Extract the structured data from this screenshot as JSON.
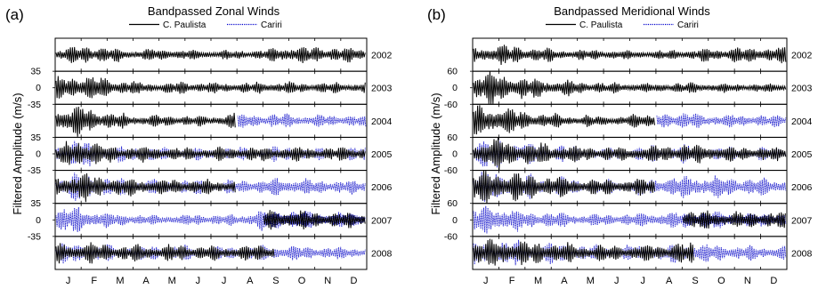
{
  "chart_data": [
    {
      "type": "line",
      "panel_label": "(a)",
      "title": "Bandpassed Zonal Winds",
      "ylabel": "Filtered Amplitude (m/s)",
      "xlabel": "",
      "months": [
        "J",
        "F",
        "M",
        "A",
        "M",
        "J",
        "J",
        "A",
        "S",
        "O",
        "N",
        "D"
      ],
      "legend": [
        {
          "name": "C. Paulista",
          "color": "#000000",
          "style": "solid"
        },
        {
          "name": "Cariri",
          "color": "#0000cc",
          "style": "dotted"
        }
      ],
      "ylim": [
        -35,
        35
      ],
      "ytick_values": [
        35,
        0,
        -35
      ],
      "series": [
        {
          "name": "2002",
          "paulista_months": [
            0,
            12
          ],
          "cariri_months": null,
          "envelope": [
            0.35,
            0.55,
            0.45,
            0.3,
            0.35,
            0.3,
            0.25,
            0.25,
            0.3,
            0.5,
            0.45,
            0.4
          ]
        },
        {
          "name": "2003",
          "paulista_months": [
            0,
            12
          ],
          "cariri_months": null,
          "envelope": [
            0.55,
            0.8,
            0.6,
            0.35,
            0.3,
            0.35,
            0.3,
            0.3,
            0.35,
            0.35,
            0.3,
            0.3
          ]
        },
        {
          "name": "2004",
          "paulista_months": [
            0,
            7
          ],
          "cariri_months": [
            7,
            12
          ],
          "envelope": [
            0.8,
            0.85,
            0.5,
            0.35,
            0.35,
            0.3,
            0.3,
            0.45,
            0.4,
            0.4,
            0.35,
            0.35
          ]
        },
        {
          "name": "2005",
          "paulista_months": [
            0,
            12
          ],
          "cariri_months": [
            0,
            12
          ],
          "envelope": [
            0.45,
            0.9,
            0.5,
            0.45,
            0.4,
            0.35,
            0.35,
            0.4,
            0.4,
            0.45,
            0.35,
            0.4
          ]
        },
        {
          "name": "2006",
          "paulista_months": [
            0,
            7
          ],
          "cariri_months": [
            0,
            12
          ],
          "envelope": [
            0.6,
            0.85,
            0.55,
            0.5,
            0.45,
            0.45,
            0.4,
            0.4,
            0.45,
            0.55,
            0.45,
            0.4
          ]
        },
        {
          "name": "2007",
          "paulista_months": [
            8,
            12
          ],
          "cariri_months": [
            0,
            12
          ],
          "envelope": [
            0.7,
            0.75,
            0.45,
            0.35,
            0.3,
            0.3,
            0.35,
            0.35,
            0.6,
            0.6,
            0.5,
            0.45
          ]
        },
        {
          "name": "2008",
          "paulista_months": [
            0,
            8.5
          ],
          "cariri_months": [
            0,
            12
          ],
          "envelope": [
            0.55,
            0.6,
            0.5,
            0.45,
            0.45,
            0.45,
            0.4,
            0.4,
            0.45,
            0.45,
            0.4,
            0.35
          ]
        }
      ]
    },
    {
      "type": "line",
      "panel_label": "(b)",
      "title": "Bandpassed Meridional Winds",
      "ylabel": "Filtered Amplitude (m/s)",
      "xlabel": "",
      "months": [
        "J",
        "F",
        "M",
        "A",
        "M",
        "J",
        "J",
        "A",
        "S",
        "O",
        "N",
        "D"
      ],
      "legend": [
        {
          "name": "C. Paulista",
          "color": "#000000",
          "style": "solid"
        },
        {
          "name": "Cariri",
          "color": "#0000cc",
          "style": "dotted"
        }
      ],
      "ylim": [
        -60,
        60
      ],
      "ytick_values": [
        60,
        0,
        -60
      ],
      "series": [
        {
          "name": "2002",
          "paulista_months": [
            0,
            12
          ],
          "cariri_months": null,
          "envelope": [
            0.45,
            0.6,
            0.45,
            0.35,
            0.3,
            0.3,
            0.25,
            0.25,
            0.3,
            0.4,
            0.45,
            0.45
          ]
        },
        {
          "name": "2003",
          "paulista_months": [
            0,
            12
          ],
          "cariri_months": null,
          "envelope": [
            0.85,
            0.9,
            0.65,
            0.5,
            0.4,
            0.3,
            0.3,
            0.25,
            0.3,
            0.3,
            0.25,
            0.25
          ]
        },
        {
          "name": "2004",
          "paulista_months": [
            0,
            7
          ],
          "cariri_months": [
            7,
            12
          ],
          "envelope": [
            0.85,
            0.8,
            0.55,
            0.4,
            0.35,
            0.3,
            0.3,
            0.55,
            0.5,
            0.4,
            0.35,
            0.35
          ]
        },
        {
          "name": "2005",
          "paulista_months": [
            0,
            12
          ],
          "cariri_months": [
            0,
            12
          ],
          "envelope": [
            0.75,
            0.95,
            0.7,
            0.55,
            0.45,
            0.4,
            0.4,
            0.5,
            0.55,
            0.5,
            0.4,
            0.4
          ]
        },
        {
          "name": "2006",
          "paulista_months": [
            0,
            7
          ],
          "cariri_months": [
            0,
            12
          ],
          "envelope": [
            0.9,
            0.95,
            0.75,
            0.65,
            0.5,
            0.45,
            0.45,
            0.5,
            0.65,
            0.7,
            0.55,
            0.5
          ]
        },
        {
          "name": "2007",
          "paulista_months": [
            8,
            12
          ],
          "cariri_months": [
            0,
            12
          ],
          "envelope": [
            0.8,
            0.9,
            0.55,
            0.45,
            0.4,
            0.35,
            0.4,
            0.45,
            0.5,
            0.55,
            0.45,
            0.45
          ]
        },
        {
          "name": "2008",
          "paulista_months": [
            0,
            8.5
          ],
          "cariri_months": [
            0,
            12
          ],
          "envelope": [
            0.7,
            0.8,
            0.65,
            0.6,
            0.5,
            0.45,
            0.45,
            0.5,
            0.6,
            0.55,
            0.45,
            0.4
          ]
        }
      ]
    }
  ]
}
